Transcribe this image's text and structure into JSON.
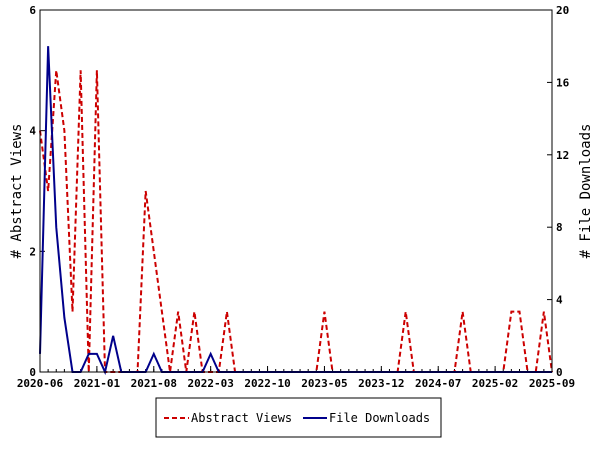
{
  "chart_data": {
    "type": "line",
    "title": "",
    "xlabel": "",
    "ylabel": "# Abstract Views",
    "y2label": "# File Downloads",
    "xlim": [
      "2020-06",
      "2025-09"
    ],
    "ylim": [
      0,
      6
    ],
    "y2lim": [
      0,
      20
    ],
    "x_tick_labels": [
      "2020-06",
      "2021-01",
      "2021-08",
      "2022-03",
      "2022-10",
      "2023-05",
      "2023-12",
      "2024-07",
      "2025-02",
      "2025-09"
    ],
    "y_tick_labels": [
      "0",
      "2",
      "4",
      "6"
    ],
    "y2_tick_labels": [
      "0",
      "4",
      "8",
      "12",
      "16",
      "20"
    ],
    "grid": false,
    "legend_position": "bottom",
    "x": [
      "2020-06",
      "2020-07",
      "2020-08",
      "2020-09",
      "2020-10",
      "2020-11",
      "2020-12",
      "2021-01",
      "2021-02",
      "2021-03",
      "2021-04",
      "2021-05",
      "2021-06",
      "2021-07",
      "2021-08",
      "2021-09",
      "2021-10",
      "2021-11",
      "2021-12",
      "2022-01",
      "2022-02",
      "2022-03",
      "2022-04",
      "2022-05",
      "2022-06",
      "2022-07",
      "2022-08",
      "2022-09",
      "2022-10",
      "2022-11",
      "2022-12",
      "2023-01",
      "2023-02",
      "2023-03",
      "2023-04",
      "2023-05",
      "2023-06",
      "2023-07",
      "2023-08",
      "2023-09",
      "2023-10",
      "2023-11",
      "2023-12",
      "2024-01",
      "2024-02",
      "2024-03",
      "2024-04",
      "2024-05",
      "2024-06",
      "2024-07",
      "2024-08",
      "2024-09",
      "2024-10",
      "2024-11",
      "2024-12",
      "2025-01",
      "2025-02",
      "2025-03",
      "2025-04",
      "2025-05",
      "2025-06",
      "2025-07",
      "2025-08",
      "2025-09"
    ],
    "series": [
      {
        "name": "Abstract Views",
        "axis": "left",
        "color": "#cc0000",
        "dash": "dashed",
        "values": [
          4,
          3,
          5,
          4,
          1,
          5,
          0,
          5,
          0,
          0,
          0,
          0,
          0,
          3,
          2,
          1,
          0,
          1,
          0,
          1,
          0,
          0,
          0,
          1,
          0,
          0,
          0,
          0,
          0,
          0,
          0,
          0,
          0,
          0,
          0,
          1,
          0,
          0,
          0,
          0,
          0,
          0,
          0,
          0,
          0,
          1,
          0,
          0,
          0,
          0,
          0,
          0,
          1,
          0,
          0,
          0,
          0,
          0,
          1,
          1,
          0,
          0,
          1,
          0
        ]
      },
      {
        "name": "File Downloads",
        "axis": "right",
        "color": "#00008b",
        "dash": "solid",
        "values": [
          1,
          18,
          8,
          3,
          0,
          0,
          1,
          1,
          0,
          2,
          0,
          0,
          0,
          0,
          1,
          0,
          0,
          0,
          0,
          0,
          0,
          1,
          0,
          0,
          0,
          0,
          0,
          0,
          0,
          0,
          0,
          0,
          0,
          0,
          0,
          0,
          0,
          0,
          0,
          0,
          0,
          0,
          0,
          0,
          0,
          0,
          0,
          0,
          0,
          0,
          0,
          0,
          0,
          0,
          0,
          0,
          0,
          0,
          0,
          0,
          0,
          0,
          0,
          0
        ]
      }
    ]
  }
}
